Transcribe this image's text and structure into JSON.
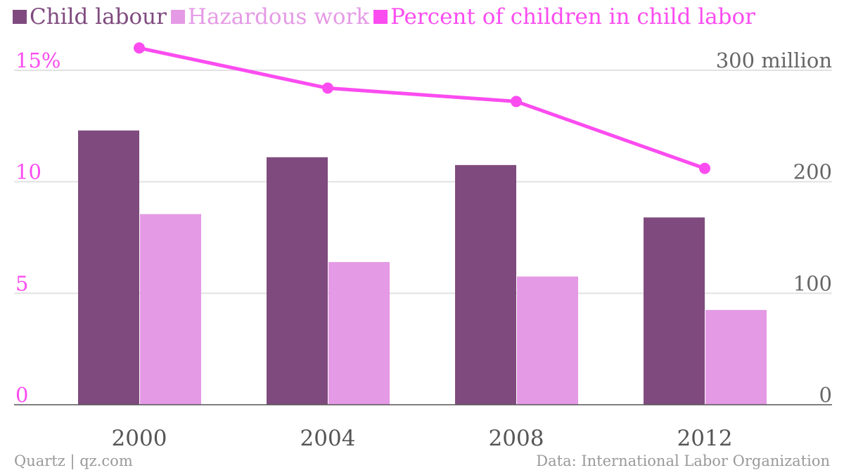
{
  "legend": [
    {
      "label": "Child labour",
      "color": "#7f4b7e"
    },
    {
      "label": "Hazardous work",
      "color": "#e59ae5"
    },
    {
      "label": "Percent of children in child labor",
      "color": "#fb4cf0"
    }
  ],
  "footer": {
    "source_left": "Quartz | qz.com",
    "source_right": "Data: International Labor Organization"
  },
  "chart_data": {
    "type": "bar",
    "categories": [
      "2000",
      "2004",
      "2008",
      "2012"
    ],
    "series": [
      {
        "name": "Child labour",
        "axis": "right",
        "type": "bar",
        "color": "#7f4b7e",
        "values": [
          246,
          222,
          215,
          168
        ]
      },
      {
        "name": "Hazardous work",
        "axis": "right",
        "type": "bar",
        "color": "#e59ae5",
        "values": [
          171,
          128,
          115,
          85
        ]
      },
      {
        "name": "Percent of children in child labor",
        "axis": "left",
        "type": "line",
        "color": "#fb4cf0",
        "values": [
          16.0,
          14.2,
          13.6,
          10.6
        ]
      }
    ],
    "left_axis": {
      "ylim": [
        0,
        15
      ],
      "ticks": [
        0,
        5,
        10,
        15
      ],
      "tick_labels": [
        "0",
        "5",
        "10",
        "15%"
      ],
      "color": "#fb4cf0"
    },
    "right_axis": {
      "ylim": [
        0,
        300
      ],
      "ticks": [
        0,
        100,
        200,
        300
      ],
      "tick_labels": [
        "0",
        "100",
        "200",
        "300 million"
      ],
      "color": "#666666"
    },
    "grid": true,
    "legend_position": "top-left"
  }
}
